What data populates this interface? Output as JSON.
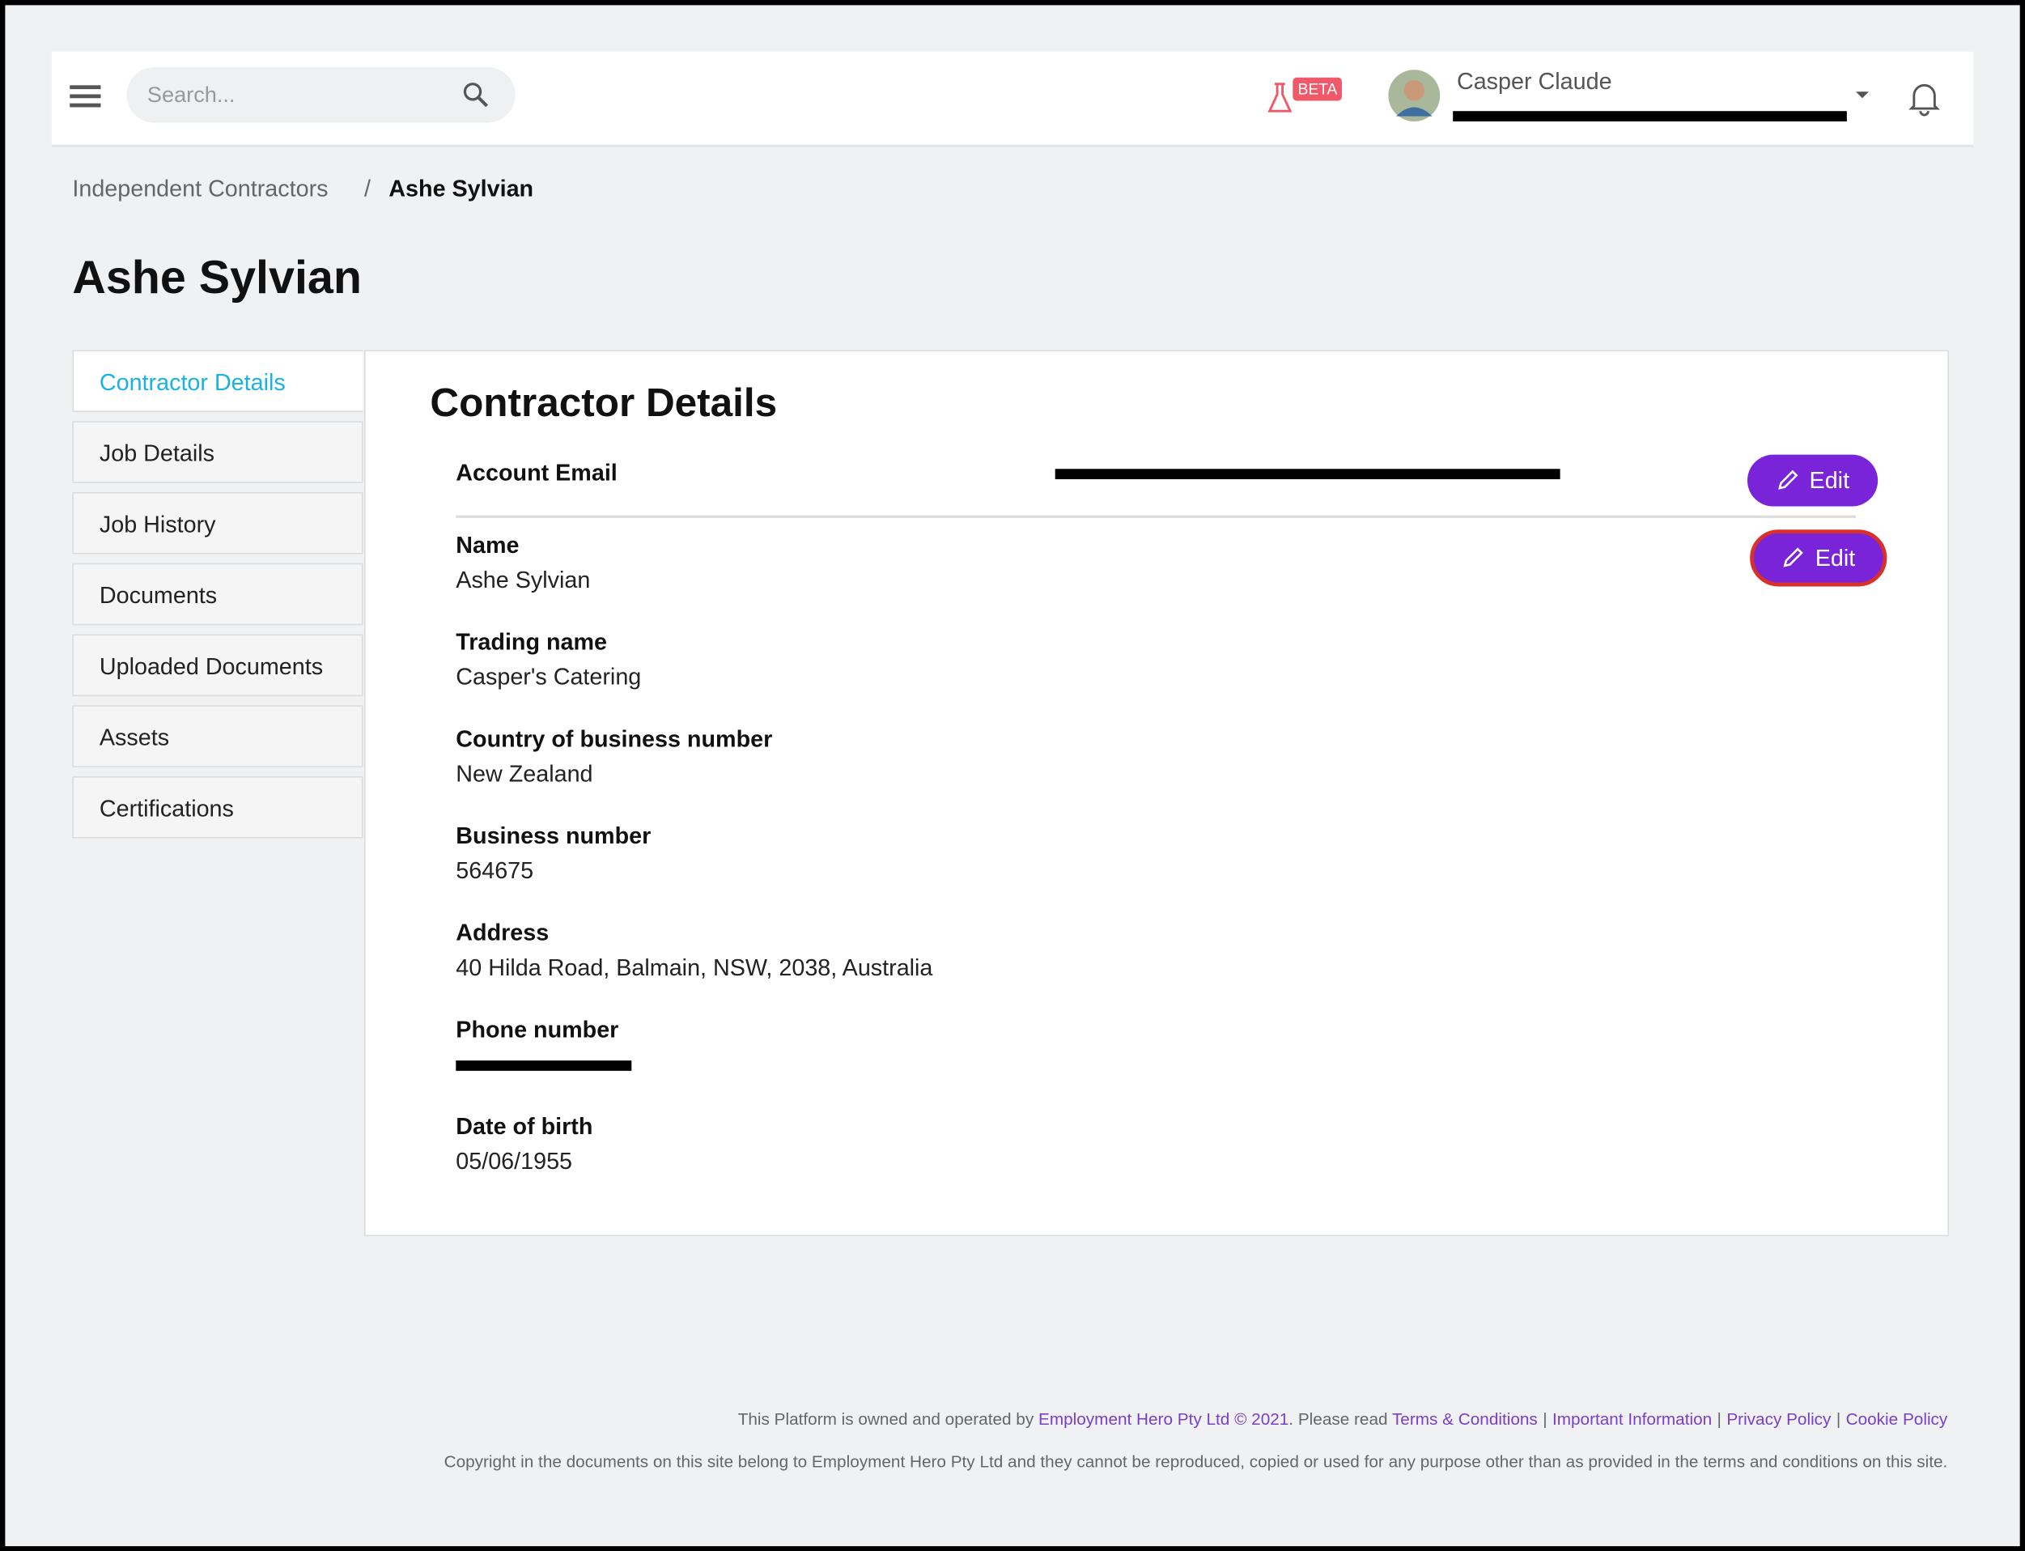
{
  "header": {
    "search_placeholder": "Search...",
    "beta_badge": "BETA",
    "user_name": "Casper Claude"
  },
  "breadcrumb": {
    "parent": "Independent Contractors",
    "separator": "/",
    "current": "Ashe Sylvian"
  },
  "page_title": "Ashe Sylvian",
  "tabs": [
    "Contractor Details",
    "Job Details",
    "Job History",
    "Documents",
    "Uploaded Documents",
    "Assets",
    "Certifications"
  ],
  "active_tab": 0,
  "section": {
    "title": "Contractor Details",
    "account_email_label": "Account Email",
    "edit_label": "Edit",
    "fields": [
      {
        "label": "Name",
        "value": "Ashe Sylvian"
      },
      {
        "label": "Trading name",
        "value": "Casper's Catering"
      },
      {
        "label": "Country of business number",
        "value": "New Zealand"
      },
      {
        "label": "Business number",
        "value": "564675"
      },
      {
        "label": "Address",
        "value": "40 Hilda Road, Balmain, NSW, 2038, Australia"
      },
      {
        "label": "Phone number"
      },
      {
        "label": "Date of birth",
        "value": "05/06/1955"
      }
    ]
  },
  "footer": {
    "prefix": "This Platform is owned and operated by ",
    "company": "Employment Hero Pty Ltd © 2021",
    "middle": ". Please read ",
    "links": [
      "Terms & Conditions",
      "Important Information",
      "Privacy Policy",
      "Cookie Policy"
    ],
    "link_separator": "|",
    "copyright": "Copyright in the documents on this site belong to Employment Hero Pty Ltd and they cannot be reproduced, copied or used for any purpose other than as provided in the terms and conditions on this site."
  }
}
